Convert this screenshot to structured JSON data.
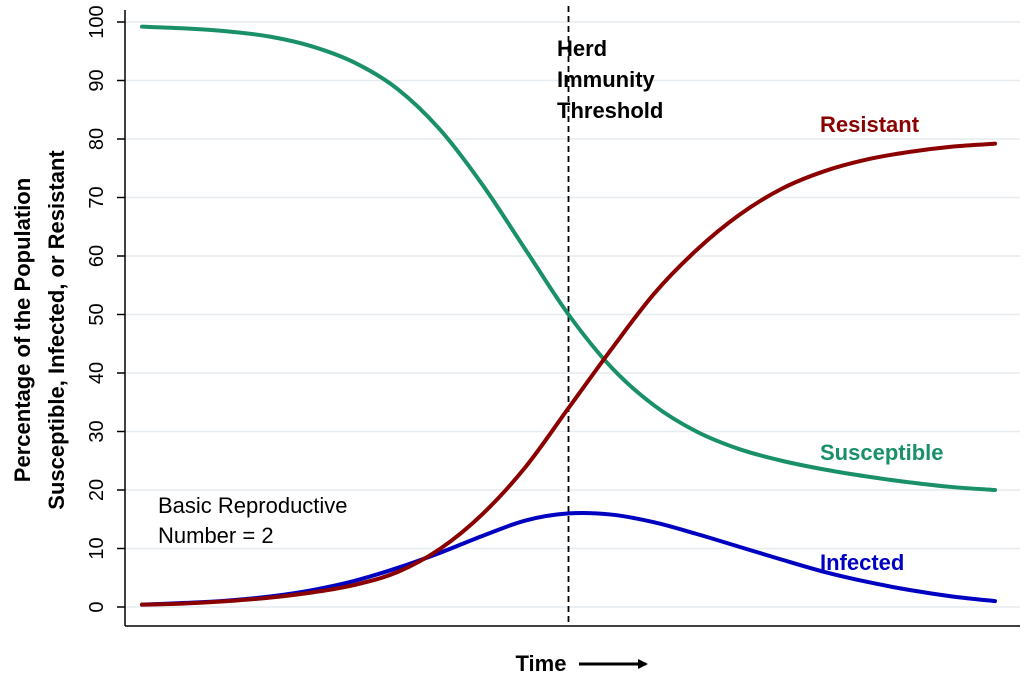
{
  "chart_data": {
    "type": "line",
    "title": "",
    "xlabel": "Time",
    "ylabel_line1": "Percentage of the Population",
    "ylabel_line2": "Susceptible, Infected, or Resistant",
    "ylim": [
      0,
      100
    ],
    "yticks": [
      0,
      10,
      20,
      30,
      40,
      50,
      60,
      70,
      80,
      90,
      100
    ],
    "ytick_labels": [
      "0",
      "10",
      "20",
      "30",
      "40",
      "50",
      "60",
      "70",
      "80",
      "90",
      "100"
    ],
    "grid": "horizontal",
    "x": [
      0,
      0.05,
      0.1,
      0.15,
      0.2,
      0.25,
      0.3,
      0.35,
      0.4,
      0.45,
      0.5,
      0.55,
      0.6,
      0.65,
      0.7,
      0.75,
      0.8,
      0.85,
      0.9,
      0.95,
      1.0
    ],
    "series": [
      {
        "name": "Susceptible",
        "color": "#1a9068",
        "values": [
          99.2,
          98.9,
          98.4,
          97.5,
          95.8,
          93.0,
          88.5,
          81.5,
          72.0,
          61.0,
          50.0,
          41.0,
          34.5,
          30.0,
          27.0,
          25.0,
          23.5,
          22.3,
          21.3,
          20.5,
          20.0
        ]
      },
      {
        "name": "Infected",
        "color": "#0000c0",
        "values": [
          0.4,
          0.7,
          1.1,
          1.8,
          2.9,
          4.5,
          6.7,
          9.3,
          12.2,
          14.8,
          16.0,
          15.8,
          14.5,
          12.5,
          10.3,
          8.1,
          6.0,
          4.3,
          2.9,
          1.8,
          1.0
        ]
      },
      {
        "name": "Resistant",
        "color": "#8b0000",
        "values": [
          0.4,
          0.6,
          1.0,
          1.6,
          2.5,
          3.8,
          6.0,
          10.0,
          16.0,
          24.0,
          34.0,
          44.0,
          53.5,
          61.0,
          67.0,
          71.5,
          74.5,
          76.5,
          77.8,
          78.7,
          79.2
        ]
      }
    ],
    "threshold": {
      "x": 0.5,
      "label_lines": [
        "Herd",
        "Immunity",
        "Threshold"
      ]
    },
    "series_labels": [
      {
        "text": "Resistant",
        "color": "#8b0000"
      },
      {
        "text": "Susceptible",
        "color": "#1a9068"
      },
      {
        "text": "Infected",
        "color": "#0000c0"
      }
    ],
    "note_lines": [
      "Basic Reproductive",
      "Number = 2"
    ],
    "x_arrow": "right-arrow-icon"
  }
}
